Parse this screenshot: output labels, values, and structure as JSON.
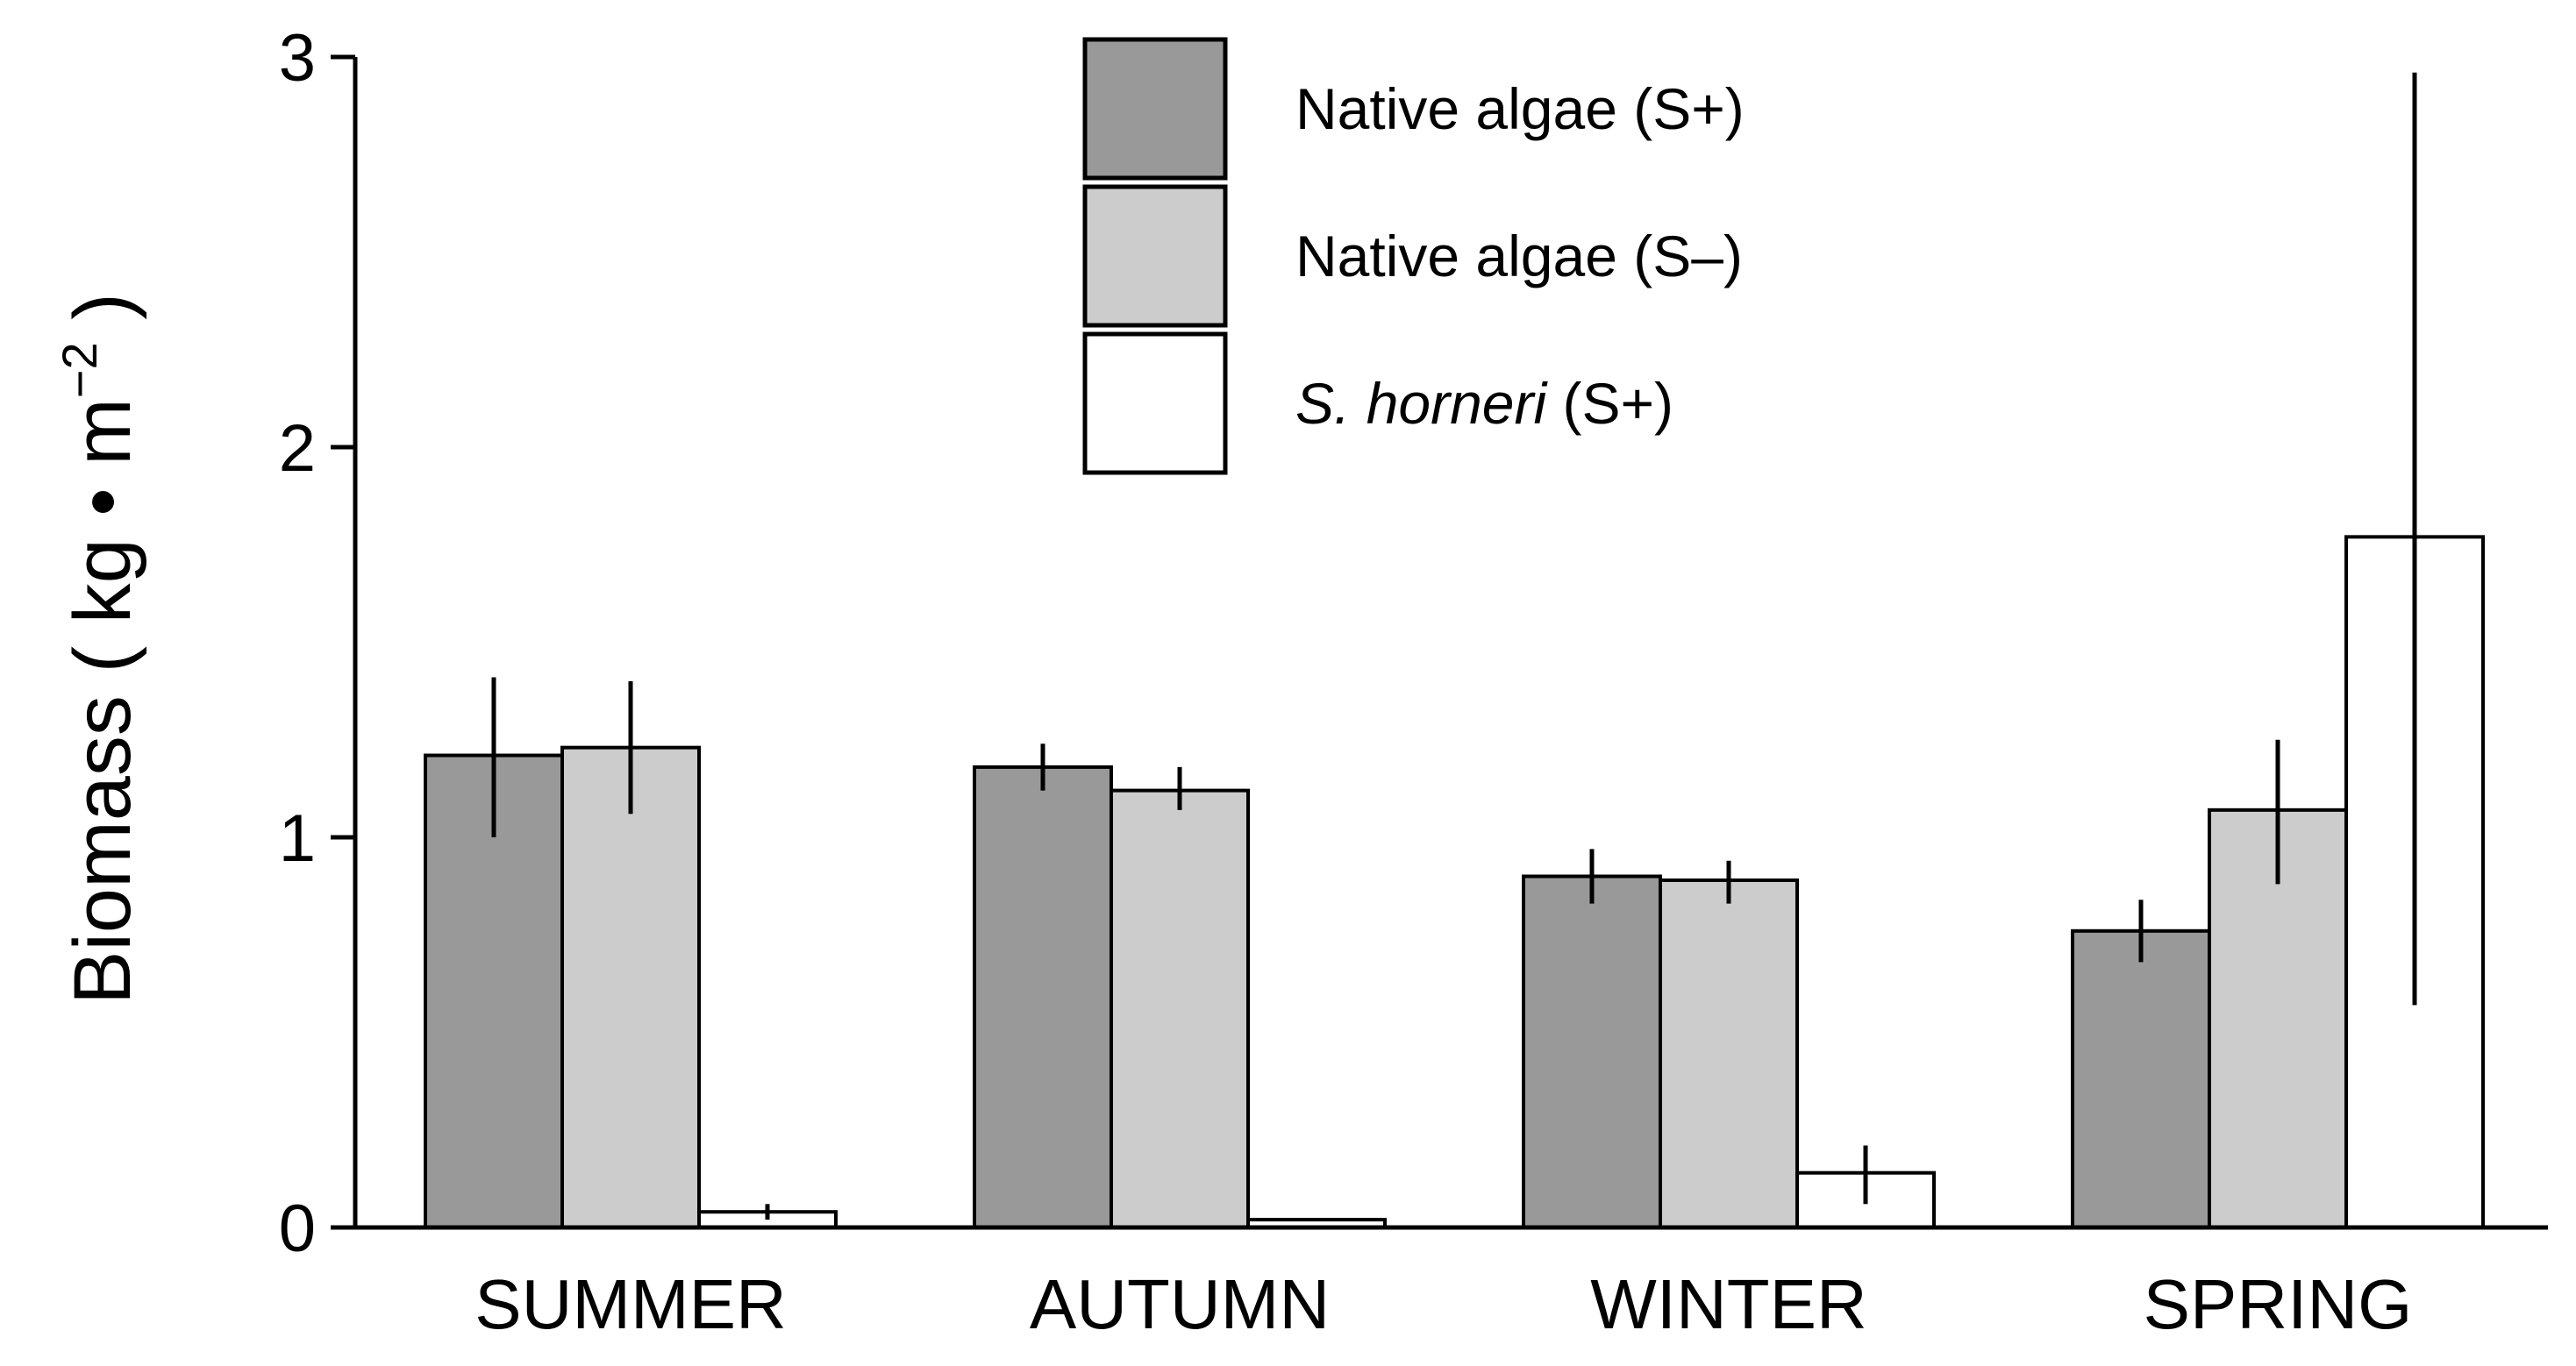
{
  "chart_data": {
    "type": "bar",
    "title": "",
    "ylabel": {
      "prefix": "Biomass ( kg",
      "dot": "•",
      "unit": "m",
      "exponent": "−2",
      "suffix": ")"
    },
    "xlabel": "",
    "ylim": [
      0,
      3
    ],
    "yticks": [
      "0",
      "1",
      "2",
      "3"
    ],
    "categories": [
      "SUMMER",
      "AUTUMN",
      "WINTER",
      "SPRING"
    ],
    "series": [
      {
        "name": "Native algae (S+)",
        "label_main": "Native algae (S+)",
        "label_italic": "",
        "color": "#999999",
        "values": [
          1.21,
          1.18,
          0.9,
          0.76
        ],
        "err_low": [
          1.0,
          1.12,
          0.83,
          0.68
        ],
        "err_high": [
          1.41,
          1.24,
          0.97,
          0.84
        ]
      },
      {
        "name": "Native algae (S–)",
        "label_main": "Native algae (S–)",
        "label_italic": "",
        "color": "#cccccc",
        "values": [
          1.23,
          1.12,
          0.89,
          1.07
        ],
        "err_low": [
          1.06,
          1.07,
          0.83,
          0.88
        ],
        "err_high": [
          1.4,
          1.18,
          0.94,
          1.25
        ]
      },
      {
        "name": "S. horneri (S+)",
        "label_main": "(S+)",
        "label_italic": "S. horneri",
        "color": "#ffffff",
        "values": [
          0.04,
          0.02,
          0.14,
          1.77
        ],
        "err_low": [
          0.02,
          0.02,
          0.06,
          0.57
        ],
        "err_high": [
          0.06,
          0.02,
          0.21,
          2.96
        ]
      }
    ],
    "legend_position": "top-center",
    "grid": false
  }
}
